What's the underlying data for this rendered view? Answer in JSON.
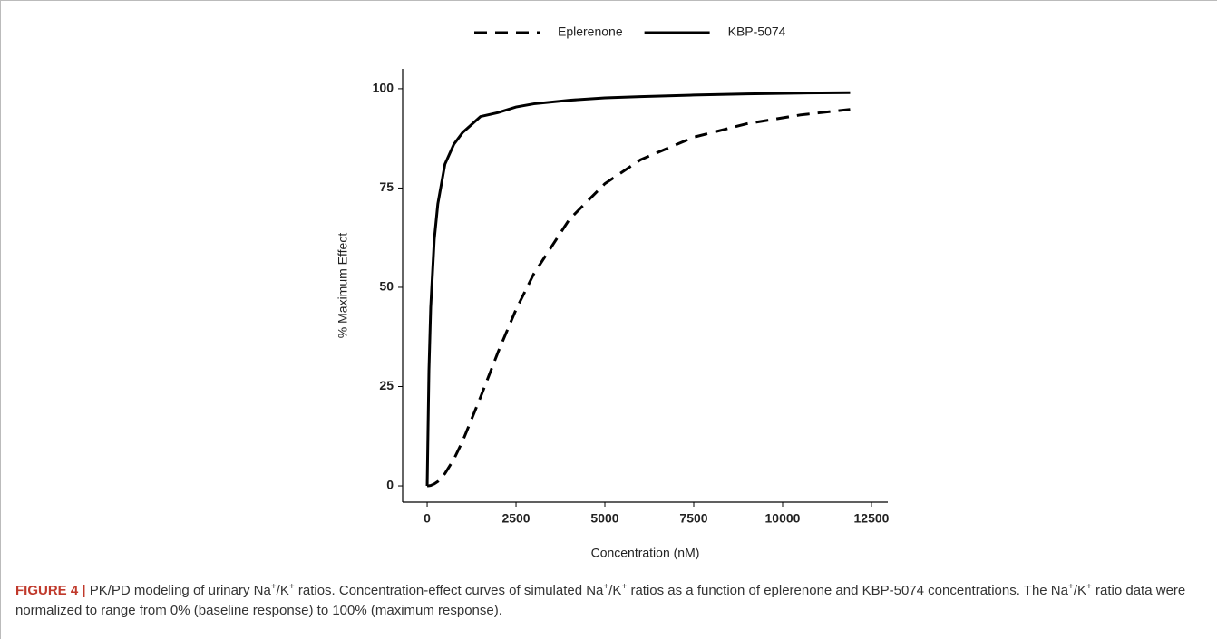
{
  "chart_data": {
    "type": "line",
    "x_label": "Concentration (nM)",
    "y_label": "% Maximum Effect",
    "x": [
      0,
      50,
      100,
      200,
      300,
      500,
      750,
      1000,
      1500,
      2000,
      2500,
      3000,
      4000,
      5000,
      6000,
      7500,
      9000,
      10500,
      11900
    ],
    "series": [
      {
        "name": "Eplerenone",
        "color": "#000000",
        "dash": true,
        "values": [
          0,
          0.03,
          0.1,
          0.5,
          1.1,
          3.1,
          6.7,
          11.3,
          22.3,
          33.8,
          44.4,
          53.4,
          67.1,
          76.1,
          82.1,
          87.8,
          91.2,
          93.4,
          94.8
        ]
      },
      {
        "name": "KBP-5074",
        "color": "#000000",
        "dash": false,
        "values": [
          0,
          29,
          45,
          62,
          71,
          81,
          86,
          89,
          93,
          94,
          95.4,
          96.2,
          97.1,
          97.7,
          98,
          98.4,
          98.7,
          98.9,
          99
        ]
      }
    ],
    "xlim": [
      -690,
      12960
    ],
    "ylim": [
      -4.1,
      105
    ],
    "xticks": [
      0,
      2500,
      5000,
      7500,
      10000,
      12500
    ],
    "yticks": [
      0,
      25,
      50,
      75,
      100
    ],
    "grid": false,
    "legend": "top"
  },
  "caption": {
    "label": "FIGURE 4 |",
    "parts": [
      "PK/PD modeling of urinary Na",
      "+",
      "/K",
      "+",
      " ratios. Concentration-effect curves of simulated Na",
      "+",
      "/K",
      "+",
      " ratios as a function of eplerenone and KBP-5074 concentrations. The Na",
      "+",
      "/K",
      "+",
      " ratio data were normalized to range from 0% (baseline response) to 100% (maximum response)."
    ]
  }
}
